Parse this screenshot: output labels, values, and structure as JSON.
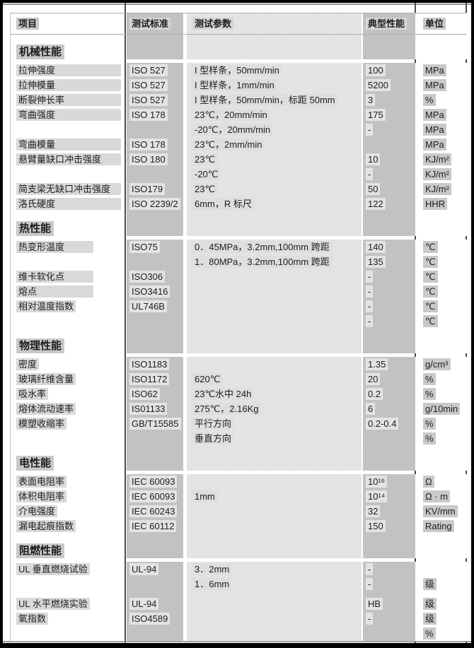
{
  "colors": {
    "frame_black": "#000000",
    "column_gray": "#c2c2c2",
    "highlight_light": "#e3e3e3",
    "highlight_mid": "#d9d9d9",
    "highlight_dark": "#c9c9c9",
    "dither_gray": "#c8c8c8"
  },
  "table": {
    "headers": [
      "项目",
      "测试标准",
      "测试参数",
      "典型性能",
      "单位"
    ],
    "rows": [
      {
        "type": "section",
        "item": "机械性能"
      },
      {
        "type": "data",
        "bar": "lg",
        "item": "拉伸强度",
        "standard": "ISO 527",
        "param": "I 型样条，50mm/min",
        "value": "100",
        "unit": "MPa"
      },
      {
        "type": "data",
        "bar": "lg",
        "item": "拉伸模量",
        "standard": "ISO 527",
        "param": "I 型样条，1mm/min",
        "value": "5200",
        "unit": "MPa"
      },
      {
        "type": "data",
        "bar": "lg",
        "item": "断裂伸长率",
        "standard": "ISO 527",
        "param": "I 型样条，50mm/min，标距 50mm",
        "value": "3",
        "unit": "%"
      },
      {
        "type": "data",
        "bar": "lg",
        "item": "弯曲强度",
        "standard": "ISO 178",
        "param": "23℃，20mm/min",
        "value": "175",
        "unit": "MPa"
      },
      {
        "type": "data",
        "item": "",
        "standard": "",
        "param": "-20℃，20mm/min",
        "value": "-",
        "unit": "MPa"
      },
      {
        "type": "data",
        "bar": "lg",
        "item": "弯曲模量",
        "standard": "ISO 178",
        "param": "23℃，2mm/min",
        "value": "",
        "unit": "MPa"
      },
      {
        "type": "data",
        "bar": "lg",
        "item": "悬臂量缺口冲击强度",
        "standard": "ISO 180",
        "param": "23℃",
        "value": "10",
        "unit": "KJ/m²"
      },
      {
        "type": "data",
        "item": "",
        "standard": "",
        "param": "-20℃",
        "value": "-",
        "unit": "KJ/m²"
      },
      {
        "type": "data",
        "bar": "lg",
        "item": "简支梁无缺口冲击强度",
        "standard": "ISO179",
        "param": "23℃",
        "value": "50",
        "unit": "KJ/m²"
      },
      {
        "type": "data",
        "bar": "lg",
        "item": "洛氏硬度",
        "standard": "ISO 2239/2",
        "param": "6mm，R 标尺",
        "value": "122",
        "unit": "HHR"
      },
      {
        "type": "section",
        "item": "热性能"
      },
      {
        "type": "data",
        "bar": "md",
        "item": "热变形温度",
        "standard": "ISO75",
        "param": "0．45MPa，3.2mm,100mm 跨距",
        "value": "140",
        "unit": "℃"
      },
      {
        "type": "data",
        "item": "",
        "standard": "",
        "param": "1．80MPa，3.2mm,100mm 跨距",
        "value": "135",
        "unit": "℃"
      },
      {
        "type": "data",
        "bar": "md",
        "item": "维卡软化点",
        "standard": "ISO306",
        "param": "",
        "value": "-",
        "unit": "℃"
      },
      {
        "type": "data",
        "bar": "md",
        "item": "熔点",
        "standard": "ISO3416",
        "param": "",
        "value": "-",
        "unit": "℃"
      },
      {
        "type": "data",
        "item": "相对温度指数",
        "standard": "UL746B",
        "param": "",
        "value": "-",
        "unit": "℃"
      },
      {
        "type": "data",
        "item": "",
        "standard": "",
        "param": "",
        "value": "-",
        "unit": "℃"
      },
      {
        "type": "section",
        "item": "物理性能"
      },
      {
        "type": "data",
        "item": "密度",
        "standard": "ISO1183",
        "param": "",
        "value": "1.35",
        "unit": "g/cm³"
      },
      {
        "type": "data",
        "item": "玻璃纤维含量",
        "standard": "ISO1172",
        "param": "620℃",
        "value": "20",
        "unit": "%"
      },
      {
        "type": "data",
        "item": "吸水率",
        "standard": "ISO62",
        "param": "23℃水中 24h",
        "value": "0.2",
        "unit": "%"
      },
      {
        "type": "data",
        "item": "熔体流动速率",
        "standard": "IS01133",
        "param": "275℃，2.16Kg",
        "value": "6",
        "unit": "g/10min"
      },
      {
        "type": "data",
        "item": "模塑收缩率",
        "standard": "GB/T15585",
        "param": "平行方向",
        "value": "0.2-0.4",
        "unit": "%"
      },
      {
        "type": "data",
        "item": "",
        "standard": "",
        "param": "垂直方向",
        "value": "",
        "unit": "%"
      },
      {
        "type": "section",
        "item": "电性能"
      },
      {
        "type": "data",
        "item": "表面电阻率",
        "standard": "IEC 60093",
        "param": "",
        "value": "10¹⁶",
        "unit": "Ω"
      },
      {
        "type": "data",
        "item": "体积电阻率",
        "standard": "IEC 60093",
        "param": "1mm",
        "value": "10¹⁴",
        "unit": "Ω · m"
      },
      {
        "type": "data",
        "item": "介电强度",
        "standard": "IEC 60243",
        "param": "",
        "value": "32",
        "unit": "KV/mm"
      },
      {
        "type": "data",
        "item": "漏电起痕指数",
        "standard": "IEC 60112",
        "param": "",
        "value": "150",
        "unit": "Rating"
      },
      {
        "type": "section",
        "item": "阻燃性能"
      },
      {
        "type": "data",
        "item": "UL 垂直燃烧试验",
        "standard": "UL-94",
        "param": "3．2mm",
        "value": "-",
        "unit": ""
      },
      {
        "type": "data",
        "item": "",
        "standard": "",
        "param": "1．6mm",
        "value": "-",
        "unit": "级"
      },
      {
        "type": "spacer"
      },
      {
        "type": "data",
        "item": "UL 水平燃烧实验",
        "standard": "UL-94",
        "param": "",
        "value": "HB",
        "unit": "级"
      },
      {
        "type": "data",
        "item": "氧指数",
        "standard": "ISO4589",
        "param": "",
        "value": "-",
        "unit": "级"
      },
      {
        "type": "data",
        "item": "",
        "standard": "",
        "param": "",
        "value": "",
        "unit": "%"
      }
    ]
  }
}
